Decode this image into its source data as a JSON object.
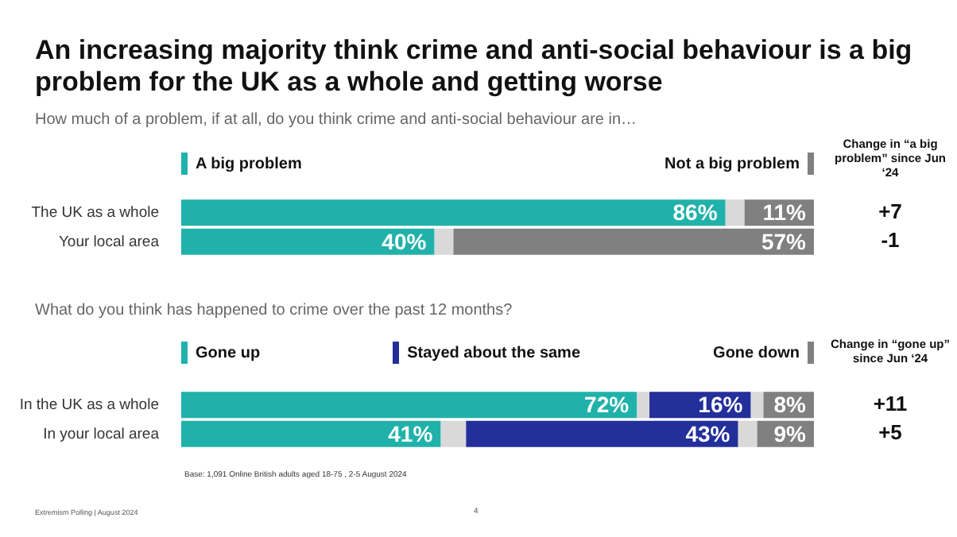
{
  "chart_data": [
    {
      "type": "bar",
      "orientation": "horizontal",
      "stacked": true,
      "title": "An increasing majority think crime and anti-social behaviour is a big problem for the UK as a whole and getting worse",
      "subtitle": "How much of a problem, if at all, do you think crime and anti-social behaviour are in…",
      "categories": [
        "The UK as a whole",
        "Your local area"
      ],
      "legend": "top",
      "grid": false,
      "series": [
        {
          "name": "A big problem",
          "color": "#20b2aa",
          "values": [
            86,
            40
          ],
          "value_labels": [
            "86%",
            "40%"
          ]
        },
        {
          "color": "#d9d9d9",
          "values": [
            3,
            3
          ]
        },
        {
          "name": "Not a big problem",
          "color": "#808080",
          "values": [
            11,
            57
          ],
          "value_labels": [
            "11%",
            "57%"
          ]
        }
      ],
      "annotations": [
        "Change in “a big problem” since Jun ‘24",
        "+7",
        "-1"
      ]
    },
    {
      "type": "bar",
      "orientation": "horizontal",
      "stacked": true,
      "title": "What do you think has happened to crime over the past 12 months?",
      "categories": [
        "In the UK as a whole",
        "In your local area"
      ],
      "legend": "top",
      "grid": false,
      "series": [
        {
          "name": "Gone up",
          "color": "#20b2aa",
          "values": [
            72,
            41
          ],
          "value_labels": [
            "72%",
            "41%"
          ]
        },
        {
          "color": "#d9d9d9",
          "values": [
            2,
            4
          ]
        },
        {
          "name": "Stayed about the same",
          "color": "#232f9a",
          "values": [
            16,
            43
          ],
          "value_labels": [
            "16%",
            "43%"
          ]
        },
        {
          "color": "#d9d9d9",
          "values": [
            2,
            3
          ]
        },
        {
          "name": "Gone down",
          "color": "#808080",
          "values": [
            8,
            9
          ],
          "value_labels": [
            "8%",
            "9%"
          ]
        }
      ],
      "annotations": [
        "Change in “gone up” since Jun ‘24",
        "+11",
        "+5",
        "Base: 1,091 Online British adults aged 18-75 , 2-5 August 2024",
        "Extremism Polling | August 2024",
        "4"
      ]
    }
  ]
}
